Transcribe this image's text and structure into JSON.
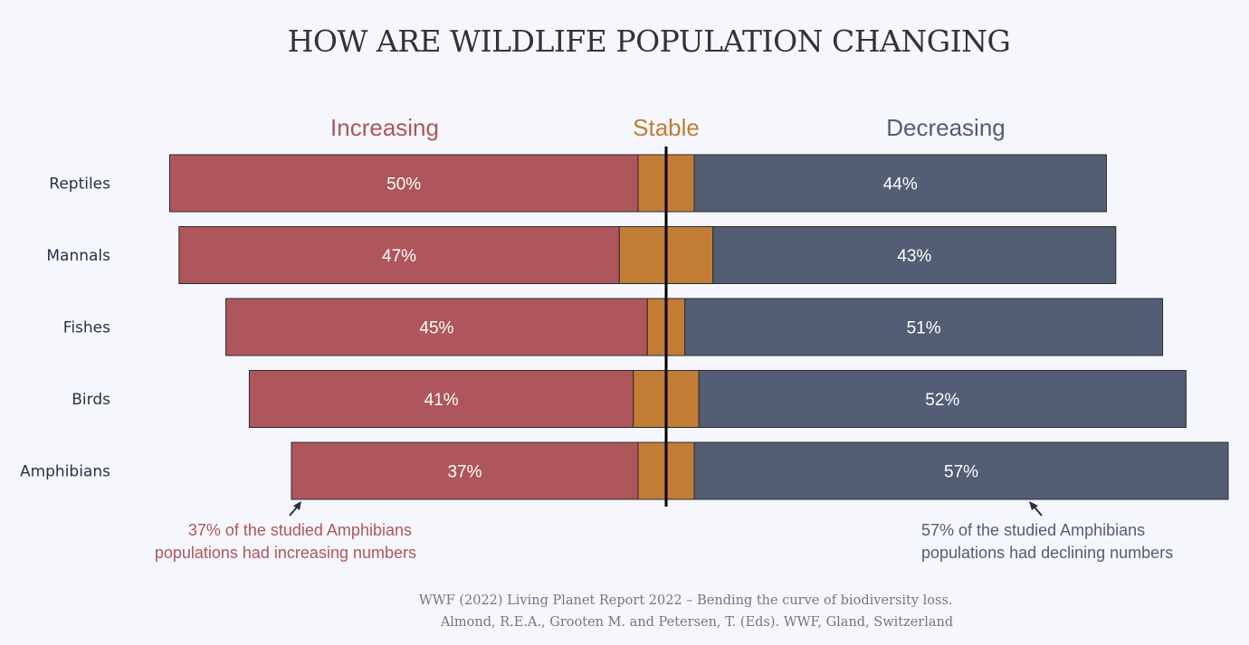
{
  "chart_data": {
    "type": "bar",
    "orientation": "horizontal-diverging",
    "title": "HOW ARE WILDLIFE POPULATION CHANGING",
    "categories": [
      "Reptiles",
      "Mannals",
      "Fishes",
      "Birds",
      "Amphibians"
    ],
    "series": [
      {
        "name": "Increasing",
        "values": [
          50,
          47,
          45,
          41,
          37
        ],
        "color": "#ae565b"
      },
      {
        "name": "Stable",
        "values": [
          6,
          10,
          4,
          7,
          6
        ],
        "color": "#c27c35"
      },
      {
        "name": "Decreasing",
        "values": [
          44,
          43,
          51,
          52,
          57
        ],
        "color": "#535d74"
      }
    ],
    "value_labels": {
      "Increasing": [
        "50%",
        "47%",
        "45%",
        "41%",
        "37%"
      ],
      "Decreasing": [
        "44%",
        "43%",
        "51%",
        "52%",
        "57%"
      ]
    },
    "annotations": {
      "left": [
        "37% of the studied Amphibians",
        "populations had increasing numbers"
      ],
      "right": [
        "57% of the studied Amphibians",
        "populations had declining numbers"
      ]
    },
    "source": [
      "WWF (2022) Living Planet Report 2022 – Bending the curve of biodiversity loss.",
      "Almond, R.E.A., Grooten M. and Petersen, T. (Eds). WWF, Gland, Switzerland"
    ],
    "colors": {
      "increasing": "#ae565b",
      "stable": "#c27c35",
      "decreasing": "#535d74",
      "divider": "#000000"
    }
  }
}
